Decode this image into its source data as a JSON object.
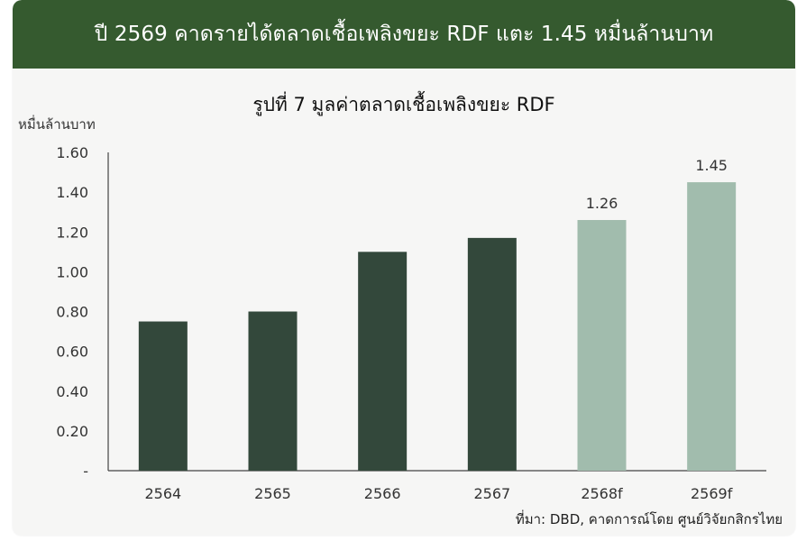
{
  "header": {
    "title": "ปี 2569 คาดรายได้ตลาดเชื้อเพลิงขยะ RDF แตะ 1.45 หมื่นล้านบาท"
  },
  "source_note": "ที่มา: DBD, คาดการณ์โดย ศูนย์วิจัยกสิกรไทย",
  "colors": {
    "header_bg": "#355a2f",
    "actual_bar": "#33483b",
    "forecast_bar": "#a1bcad",
    "axis": "#444444",
    "background": "#f6f6f5"
  },
  "chart_data": {
    "type": "bar",
    "title": "รูปที่ 7 มูลค่าตลาดเชื้อเพลิงขยะ RDF",
    "ylabel": "หมื่นล้านบาท",
    "xlabel": "",
    "categories": [
      "2564",
      "2565",
      "2566",
      "2567",
      "2568f",
      "2569f"
    ],
    "values": [
      0.75,
      0.8,
      1.1,
      1.17,
      1.26,
      1.45
    ],
    "forecast": [
      false,
      false,
      false,
      false,
      true,
      true
    ],
    "data_labels": [
      "",
      "",
      "",
      "",
      "1.26",
      "1.45"
    ],
    "ylim": [
      0,
      1.6
    ],
    "yticks": [
      "-",
      "0.20",
      "0.40",
      "0.60",
      "0.80",
      "1.00",
      "1.20",
      "1.40",
      "1.60"
    ],
    "ytick_values": [
      0,
      0.2,
      0.4,
      0.6,
      0.8,
      1.0,
      1.2,
      1.4,
      1.6
    ],
    "grid": false,
    "legend": "none"
  }
}
